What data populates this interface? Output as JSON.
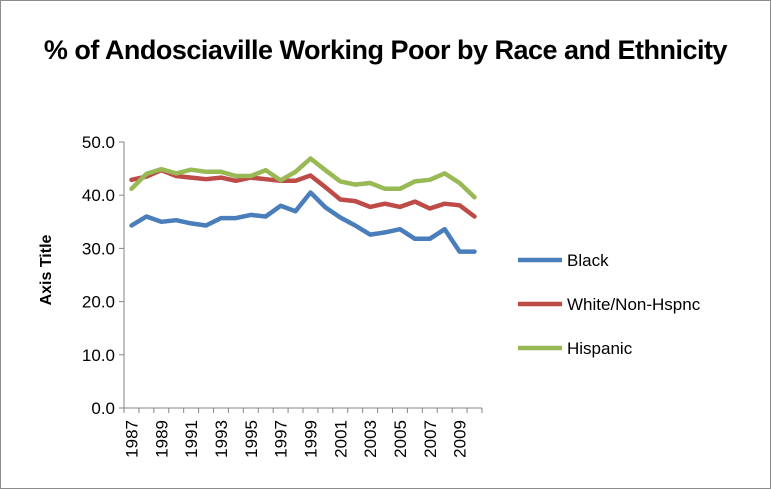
{
  "chart_data": {
    "type": "line",
    "title": "% of Andosciaville Working Poor by Race and Ethnicity",
    "xlabel": "",
    "ylabel": "Axis Title",
    "ylim": [
      0,
      50
    ],
    "yticks": [
      "0.0",
      "10.0",
      "20.0",
      "30.0",
      "40.0",
      "50.0"
    ],
    "x": [
      "1987",
      "1988",
      "1989",
      "1990",
      "1991",
      "1992",
      "1993",
      "1994",
      "1995",
      "1996",
      "1997",
      "1998",
      "1999",
      "2000",
      "2001",
      "2002",
      "2003",
      "2004",
      "2005",
      "2006",
      "2007",
      "2008",
      "2009",
      "2010"
    ],
    "xtick_labels": [
      "1987",
      "1989",
      "1991",
      "1993",
      "1995",
      "1997",
      "1999",
      "2001",
      "2003",
      "2005",
      "2007",
      "2009"
    ],
    "grid": false,
    "legend_position": "right",
    "series": [
      {
        "name": "Black",
        "color": "#4a7ebb",
        "values": [
          34.3,
          36.0,
          35.0,
          35.3,
          34.7,
          34.3,
          35.7,
          35.7,
          36.3,
          36.0,
          38.0,
          37.0,
          40.5,
          37.7,
          35.8,
          34.3,
          32.6,
          33.0,
          33.6,
          31.8,
          31.8,
          33.6,
          29.4,
          29.4
        ]
      },
      {
        "name": "White/Non-Hspnc",
        "color": "#be4b48",
        "values": [
          42.9,
          43.5,
          44.7,
          43.6,
          43.3,
          43.0,
          43.3,
          42.7,
          43.3,
          43.0,
          42.7,
          42.7,
          43.7,
          41.5,
          39.2,
          38.9,
          37.8,
          38.4,
          37.8,
          38.8,
          37.5,
          38.4,
          38.1,
          36.0
        ]
      },
      {
        "name": "Hispanic",
        "color": "#98b954",
        "values": [
          41.2,
          44.0,
          44.9,
          44.1,
          44.8,
          44.4,
          44.4,
          43.6,
          43.6,
          44.7,
          42.8,
          44.4,
          46.9,
          44.7,
          42.6,
          42.0,
          42.3,
          41.2,
          41.2,
          42.6,
          42.9,
          44.1,
          42.3,
          39.6
        ]
      }
    ]
  }
}
